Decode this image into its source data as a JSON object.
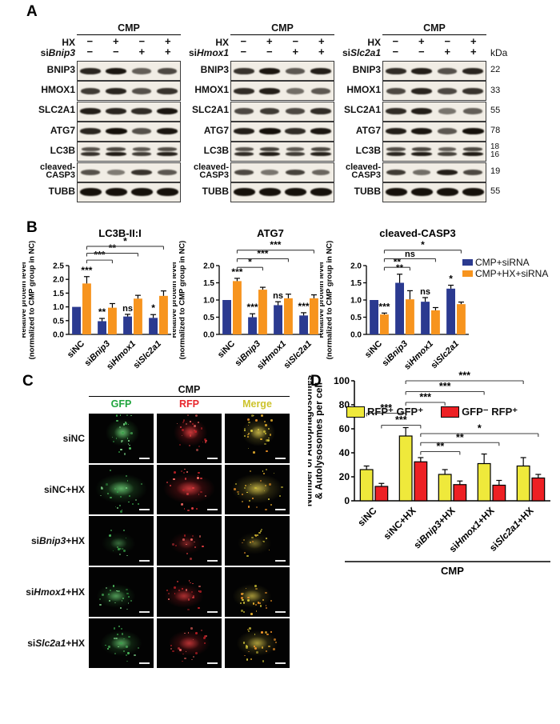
{
  "panelA": {
    "label": "A",
    "kda_header": "kDa",
    "groups": [
      {
        "treatment": "CMP",
        "hx_label": "HX",
        "si_label": "siBnip3",
        "hx_signs": [
          "−",
          "+",
          "−",
          "+"
        ],
        "si_signs": [
          "−",
          "−",
          "+",
          "+"
        ]
      },
      {
        "treatment": "CMP",
        "hx_label": "HX",
        "si_label": "siHmox1",
        "hx_signs": [
          "−",
          "+",
          "−",
          "+"
        ],
        "si_signs": [
          "−",
          "−",
          "+",
          "+"
        ]
      },
      {
        "treatment": "CMP",
        "hx_label": "HX",
        "si_label": "siSlc2a1",
        "hx_signs": [
          "−",
          "+",
          "−",
          "+"
        ],
        "si_signs": [
          "−",
          "−",
          "+",
          "+"
        ]
      }
    ],
    "rows": [
      {
        "label": "BNIP3",
        "kda": "22",
        "bands": [
          [
            0.85,
            0.95,
            0.45,
            0.6
          ],
          [
            0.75,
            0.95,
            0.5,
            0.9
          ],
          [
            0.8,
            0.9,
            0.55,
            0.85
          ]
        ]
      },
      {
        "label": "HMOX1",
        "kda": "33",
        "bands": [
          [
            0.7,
            0.85,
            0.55,
            0.75
          ],
          [
            0.8,
            0.9,
            0.35,
            0.5
          ],
          [
            0.6,
            0.85,
            0.6,
            0.75
          ]
        ]
      },
      {
        "label": "SLC2A1",
        "kda": "55",
        "bands": [
          [
            0.9,
            0.85,
            0.8,
            0.95
          ],
          [
            0.6,
            0.7,
            0.6,
            0.8
          ],
          [
            0.8,
            0.9,
            0.3,
            0.45
          ]
        ]
      },
      {
        "label": "ATG7",
        "kda": "78",
        "bands": [
          [
            0.85,
            1.0,
            0.55,
            0.95
          ],
          [
            0.9,
            1.0,
            0.8,
            0.95
          ],
          [
            0.9,
            0.95,
            0.5,
            1.0
          ]
        ]
      },
      {
        "label": "LC3B",
        "kda": "18\n16",
        "double": true,
        "bands": [
          [
            0.5,
            0.6,
            0.45,
            0.55
          ],
          [
            0.5,
            0.65,
            0.45,
            0.6
          ],
          [
            0.55,
            0.6,
            0.4,
            0.6
          ]
        ],
        "bands_lower": [
          [
            0.7,
            0.9,
            0.6,
            0.85
          ],
          [
            0.75,
            0.9,
            0.6,
            0.85
          ],
          [
            0.8,
            0.9,
            0.55,
            0.9
          ]
        ]
      },
      {
        "label": "cleaved-\nCASP3",
        "kda": "19",
        "bands": [
          [
            0.55,
            0.25,
            0.75,
            0.5
          ],
          [
            0.6,
            0.3,
            0.65,
            0.4
          ],
          [
            0.7,
            0.35,
            0.9,
            0.6
          ]
        ]
      },
      {
        "label": "TUBB",
        "kda": "55",
        "bands": [
          [
            1,
            1,
            1,
            1
          ],
          [
            1,
            1,
            1,
            1
          ],
          [
            1,
            1,
            1,
            1
          ]
        ]
      }
    ]
  },
  "panelB": {
    "label": "B",
    "legend": [
      {
        "label": "CMP+siRNA",
        "color": "#2b3a90"
      },
      {
        "label": "CMP+HX+siRNA",
        "color": "#f7941e"
      }
    ]
  },
  "panelC": {
    "label": "C",
    "group_header": "CMP",
    "col_headers": [
      {
        "label": "GFP",
        "color": "#21a53e"
      },
      {
        "label": "RFP",
        "color": "#e8272d"
      },
      {
        "label": "Merge",
        "color": "#cdc32d"
      }
    ],
    "rows": [
      "siNC",
      "siNC+HX",
      "siBnip3+HX",
      "siHmox1+HX",
      "siSlc2a1+HX"
    ]
  },
  "panelD": {
    "label": "D",
    "legend": [
      {
        "label": "RFP⁺ GFP⁺",
        "color": "#efe93b"
      },
      {
        "label": "GFP⁻ RFP⁺",
        "color": "#ed2024"
      }
    ]
  },
  "chart_data": [
    {
      "id": "lc3b-ratio",
      "type": "bar",
      "title": "LC3B-II:I",
      "ylabel": "Relative protein level\n(normalized to CMP group in NC)",
      "categories": [
        "siNC",
        "siBnip3",
        "siHmox1",
        "siSlc2a1"
      ],
      "series": [
        {
          "name": "CMP+siRNA",
          "color": "#2b3a90",
          "values": [
            1.0,
            0.48,
            0.65,
            0.6
          ],
          "errors": [
            0,
            0.1,
            0.08,
            0.12
          ]
        },
        {
          "name": "CMP+HX+siRNA",
          "color": "#f7941e",
          "values": [
            1.85,
            0.97,
            1.3,
            1.4
          ],
          "errors": [
            0.25,
            0.15,
            0.12,
            0.18
          ]
        }
      ],
      "ylim": [
        0,
        2.5
      ],
      "ytick_step": 0.5,
      "sig_above": [
        {
          "cat": 0,
          "series": 1,
          "label": "***"
        },
        {
          "cat": 1,
          "series": 0,
          "label": "**"
        },
        {
          "cat": 2,
          "series": 0,
          "label": "ns"
        },
        {
          "cat": 3,
          "series": 0,
          "label": "*"
        }
      ],
      "brackets": [
        {
          "from": {
            "cat": 0,
            "series": 1
          },
          "to": {
            "cat": 1,
            "series": 1
          },
          "y": 2.7,
          "label": "***"
        },
        {
          "from": {
            "cat": 0,
            "series": 1
          },
          "to": {
            "cat": 2,
            "series": 1
          },
          "y": 2.95,
          "label": "**"
        },
        {
          "from": {
            "cat": 0,
            "series": 1
          },
          "to": {
            "cat": 3,
            "series": 1
          },
          "y": 3.2,
          "label": "*"
        }
      ]
    },
    {
      "id": "atg7",
      "type": "bar",
      "title": "ATG7",
      "ylabel": "Relative protein level\n(normalized to CMP group in NC)",
      "categories": [
        "siNC",
        "siBnip3",
        "siHmox1",
        "siSlc2a1"
      ],
      "series": [
        {
          "name": "CMP+siRNA",
          "color": "#2b3a90",
          "values": [
            1.0,
            0.5,
            0.85,
            0.55
          ],
          "errors": [
            0,
            0.1,
            0.1,
            0.08
          ]
        },
        {
          "name": "CMP+HX+siRNA",
          "color": "#f7941e",
          "values": [
            1.55,
            1.3,
            1.05,
            1.05
          ],
          "errors": [
            0.08,
            0.07,
            0.12,
            0.1
          ]
        }
      ],
      "ylim": [
        0,
        2.0
      ],
      "ytick_step": 0.5,
      "sig_above": [
        {
          "cat": 0,
          "series": 1,
          "label": "***"
        },
        {
          "cat": 1,
          "series": 0,
          "label": "***"
        },
        {
          "cat": 2,
          "series": 0,
          "label": "ns"
        },
        {
          "cat": 3,
          "series": 0,
          "label": "***"
        }
      ],
      "brackets": [
        {
          "from": {
            "cat": 0,
            "series": 1
          },
          "to": {
            "cat": 1,
            "series": 1
          },
          "y": 1.95,
          "label": "*"
        },
        {
          "from": {
            "cat": 0,
            "series": 1
          },
          "to": {
            "cat": 2,
            "series": 1
          },
          "y": 2.2,
          "label": "***"
        },
        {
          "from": {
            "cat": 0,
            "series": 1
          },
          "to": {
            "cat": 3,
            "series": 1
          },
          "y": 2.45,
          "label": "***"
        }
      ]
    },
    {
      "id": "cleaved-casp3",
      "type": "bar",
      "title": "cleaved-CASP3",
      "ylabel": "Relative protein level\n(normalized to CMP group in NC)",
      "categories": [
        "siNC",
        "siBnip3",
        "siHmox1",
        "siSlc2a1"
      ],
      "series": [
        {
          "name": "CMP+siRNA",
          "color": "#2b3a90",
          "values": [
            1.0,
            1.5,
            0.95,
            1.33
          ],
          "errors": [
            0,
            0.25,
            0.12,
            0.1
          ]
        },
        {
          "name": "CMP+HX+siRNA",
          "color": "#f7941e",
          "values": [
            0.58,
            1.02,
            0.7,
            0.88
          ],
          "errors": [
            0.04,
            0.25,
            0.08,
            0.06
          ]
        }
      ],
      "ylim": [
        0,
        2.0
      ],
      "ytick_step": 0.5,
      "sig_above": [
        {
          "cat": 0,
          "series": 1,
          "label": "***"
        },
        {
          "cat": 1,
          "series": 0,
          "label": "**"
        },
        {
          "cat": 2,
          "series": 0,
          "label": "ns"
        },
        {
          "cat": 3,
          "series": 0,
          "label": "*"
        }
      ],
      "brackets": [
        {
          "from": {
            "cat": 0,
            "series": 1
          },
          "to": {
            "cat": 1,
            "series": 1
          },
          "y": 1.95,
          "label": "**"
        },
        {
          "from": {
            "cat": 0,
            "series": 1
          },
          "to": {
            "cat": 2,
            "series": 1
          },
          "y": 2.2,
          "label": "ns"
        },
        {
          "from": {
            "cat": 0,
            "series": 1
          },
          "to": {
            "cat": 3,
            "series": 1
          },
          "y": 2.45,
          "label": "*"
        }
      ]
    },
    {
      "id": "autophagosome-count",
      "type": "bar",
      "title": "",
      "ylabel": "Number of Autophagosomes\n& Autolysosomes per cell",
      "xlabel": "CMP",
      "categories": [
        "siNC",
        "siNC+HX",
        "siBnip3+HX",
        "siHmox1+HX",
        "siSlc2a1+HX"
      ],
      "series": [
        {
          "name": "RFP⁺ GFP⁺",
          "color": "#efe93b",
          "stroke": "#000000",
          "values": [
            26,
            54,
            22,
            31,
            29
          ],
          "errors": [
            3,
            7,
            4,
            8,
            7
          ]
        },
        {
          "name": "GFP⁻ RFP⁺",
          "color": "#ed2024",
          "stroke": "#000000",
          "values": [
            12,
            32.5,
            13.5,
            13,
            19
          ],
          "errors": [
            2.5,
            3.5,
            3,
            4,
            3
          ]
        }
      ],
      "ylim": [
        0,
        100
      ],
      "ytick_step": 20,
      "sig_above": [],
      "brackets": [
        {
          "from": {
            "cat": 1,
            "series": 0
          },
          "to": {
            "cat": 4,
            "series": 0
          },
          "y": 100,
          "label": "***"
        },
        {
          "from": {
            "cat": 1,
            "series": 0
          },
          "to": {
            "cat": 3,
            "series": 0
          },
          "y": 91,
          "label": "***"
        },
        {
          "from": {
            "cat": 1,
            "series": 0
          },
          "to": {
            "cat": 2,
            "series": 0
          },
          "y": 82,
          "label": "***"
        },
        {
          "from": {
            "cat": 0,
            "series": 0
          },
          "to": {
            "cat": 1,
            "series": 0
          },
          "y": 73,
          "label": "***"
        },
        {
          "from": {
            "cat": 0,
            "series": 1
          },
          "to": {
            "cat": 1,
            "series": 1
          },
          "y": 63,
          "label": "***"
        },
        {
          "from": {
            "cat": 1,
            "series": 1
          },
          "to": {
            "cat": 4,
            "series": 1
          },
          "y": 56,
          "label": "*"
        },
        {
          "from": {
            "cat": 1,
            "series": 1
          },
          "to": {
            "cat": 3,
            "series": 1
          },
          "y": 48.5,
          "label": "**"
        },
        {
          "from": {
            "cat": 1,
            "series": 1
          },
          "to": {
            "cat": 2,
            "series": 1
          },
          "y": 41,
          "label": "**"
        }
      ]
    }
  ]
}
